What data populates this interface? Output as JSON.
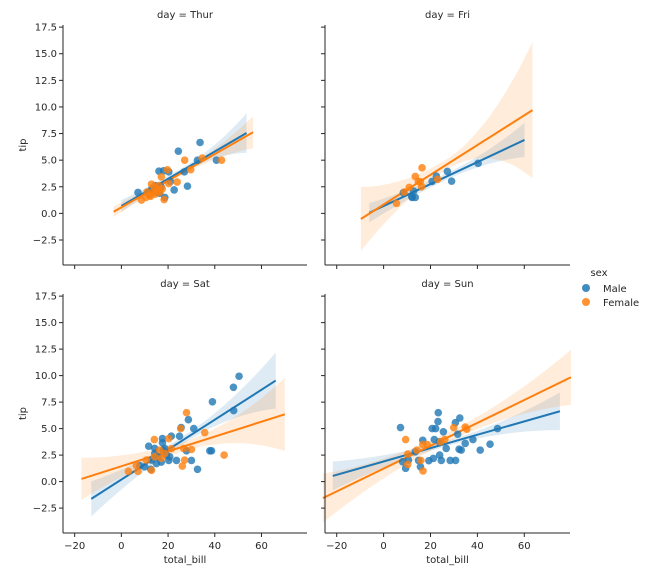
{
  "chart_data": {
    "type": "scatter",
    "kind": "faceted regression (scatter + linear fit with confidence band)",
    "xlabel": "total_bill",
    "ylabel": "tip",
    "xlim": [
      -25,
      79.5
    ],
    "ylim": [
      -4.85,
      17.7
    ],
    "xticks": [
      -20,
      0,
      20,
      40,
      60
    ],
    "xtick_labels": [
      "−20",
      "0",
      "20",
      "40",
      "60"
    ],
    "yticks": [
      -2.5,
      0,
      2.5,
      5,
      7.5,
      10,
      12.5,
      15,
      17.5
    ],
    "ytick_labels": [
      "−2.5",
      "0.0",
      "2.5",
      "5.0",
      "7.5",
      "10.0",
      "12.5",
      "15.0",
      "17.5"
    ],
    "grid": false,
    "legend": {
      "title": "sex",
      "placement": "right",
      "entries": [
        {
          "label": "Male",
          "color": "#1f77b4"
        },
        {
          "label": "Female",
          "color": "#ff7f0e"
        }
      ]
    },
    "panels": [
      {
        "title": "day = Thur",
        "series": [
          {
            "name": "Male",
            "color": "#1f77b4",
            "points": [
              [
                7.1,
                1.97
              ],
              [
                16.1,
                3.97
              ],
              [
                18.1,
                4.0
              ],
              [
                20.3,
                3.9
              ],
              [
                24.4,
                5.84
              ],
              [
                33.7,
                6.66
              ],
              [
                32.6,
                5.0
              ],
              [
                40.7,
                5.0
              ],
              [
                22.6,
                2.2
              ],
              [
                28.3,
                2.56
              ],
              [
                18.6,
                1.5
              ],
              [
                27.0,
                3.9
              ],
              [
                16.4,
                1.9
              ],
              [
                11.4,
                2.0
              ],
              [
                13.0,
                2.3
              ],
              [
                15.0,
                2.0
              ],
              [
                17.0,
                2.5
              ],
              [
                12.0,
                1.8
              ],
              [
                14.5,
                2.6
              ],
              [
                21.0,
                3.0
              ]
            ],
            "fit": {
              "x_range": [
                0,
                53.6
              ],
              "slope": 0.128,
              "intercept": 0.69,
              "ci_halfwidth": [
                0.55,
                0.25,
                1.85
              ]
            }
          },
          {
            "name": "Female",
            "color": "#ff7f0e",
            "points": [
              [
                8.6,
                1.25
              ],
              [
                12.9,
                2.75
              ],
              [
                17.1,
                3.44
              ],
              [
                19.7,
                4.1
              ],
              [
                27.1,
                5.0
              ],
              [
                34.6,
                5.2
              ],
              [
                42.9,
                5.0
              ],
              [
                29.7,
                4.1
              ],
              [
                23.9,
                2.94
              ],
              [
                18.3,
                1.3
              ],
              [
                20.3,
                2.8
              ],
              [
                10.5,
                1.5
              ],
              [
                12.0,
                1.7
              ],
              [
                13.5,
                2.0
              ],
              [
                14.5,
                1.8
              ],
              [
                15.5,
                2.2
              ],
              [
                16.5,
                2.0
              ],
              [
                11.0,
                2.0
              ],
              [
                14.0,
                2.5
              ],
              [
                17.5,
                2.3
              ],
              [
                16.0,
                2.6
              ],
              [
                12.5,
                1.6
              ]
            ],
            "fit": {
              "x_range": [
                -3.3,
                56.4
              ],
              "slope": 0.125,
              "intercept": 0.57,
              "ci_halfwidth": [
                0.5,
                0.25,
                1.5
              ]
            }
          }
        ]
      },
      {
        "title": "day = Fri",
        "series": [
          {
            "name": "Male",
            "color": "#1f77b4",
            "points": [
              [
                8.4,
                1.94
              ],
              [
                12.0,
                1.56
              ],
              [
                13.5,
                1.5
              ],
              [
                12.8,
                2.1
              ],
              [
                20.7,
                3.0
              ],
              [
                22.5,
                3.5
              ],
              [
                27.2,
                3.94
              ],
              [
                29.0,
                3.03
              ],
              [
                40.3,
                4.7
              ],
              [
                12.2,
                1.5
              ]
            ],
            "fit": {
              "x_range": [
                -6.1,
                60.1
              ],
              "slope": 0.1033,
              "intercept": 0.69,
              "ci_halfwidth": [
                0.9,
                0.3,
                1.6
              ]
            }
          },
          {
            "name": "Female",
            "color": "#ff7f0e",
            "points": [
              [
                5.5,
                0.94
              ],
              [
                8.8,
                2.0
              ],
              [
                10.9,
                2.44
              ],
              [
                13.5,
                3.47
              ],
              [
                16.4,
                4.28
              ],
              [
                15.7,
                2.97
              ],
              [
                16.2,
                2.5
              ],
              [
                23.0,
                3.2
              ],
              [
                14.8,
                3.0
              ]
            ],
            "fit": {
              "x_range": [
                -9.7,
                63.5
              ],
              "slope": 0.1397,
              "intercept": 0.83,
              "ci_halfwidth": [
                3.0,
                0.5,
                6.4
              ]
            }
          }
        ]
      },
      {
        "title": "day = Sat",
        "series": [
          {
            "name": "Male",
            "color": "#1f77b4",
            "points": [
              [
                50.4,
                9.94
              ],
              [
                48.0,
                8.9
              ],
              [
                39.0,
                7.53
              ],
              [
                48.1,
                6.7
              ],
              [
                28.7,
                5.84
              ],
              [
                25.6,
                5.1
              ],
              [
                31.0,
                5.0
              ],
              [
                24.9,
                4.28
              ],
              [
                21.4,
                4.28
              ],
              [
                17.6,
                4.06
              ],
              [
                17.6,
                3.66
              ],
              [
                11.7,
                3.34
              ],
              [
                37.9,
                2.9
              ],
              [
                38.6,
                2.9
              ],
              [
                30.0,
                2.0
              ],
              [
                32.6,
                1.16
              ],
              [
                27.9,
                2.9
              ],
              [
                23.6,
                2.0
              ],
              [
                20.3,
                2.0
              ],
              [
                12.6,
                1.16
              ],
              [
                7.9,
                1.5
              ],
              [
                10.0,
                1.4
              ],
              [
                14.3,
                2.66
              ],
              [
                15.7,
                2.34
              ],
              [
                17.9,
                2.97
              ],
              [
                19.3,
                2.5
              ],
              [
                12.9,
                2.03
              ],
              [
                15.0,
                1.7
              ],
              [
                17.1,
                1.84
              ],
              [
                18.6,
                3.13
              ],
              [
                20.7,
                2.34
              ],
              [
                14.3,
                3.13
              ]
            ],
            "fit": {
              "x_range": [
                -12.9,
                66.1
              ],
              "slope": 0.1413,
              "intercept": 0.19,
              "ci_halfwidth": [
                1.65,
                0.35,
                2.65
              ]
            }
          },
          {
            "name": "Female",
            "color": "#ff7f0e",
            "points": [
              [
                27.9,
                6.5
              ],
              [
                25.4,
                5.0
              ],
              [
                35.7,
                4.62
              ],
              [
                14.1,
                3.97
              ],
              [
                20.3,
                4.06
              ],
              [
                44.0,
                2.5
              ],
              [
                26.1,
                1.47
              ],
              [
                27.1,
                2.03
              ],
              [
                30.0,
                3.03
              ],
              [
                26.7,
                3.13
              ],
              [
                3.0,
                0.97
              ],
              [
                7.1,
                0.97
              ],
              [
                12.9,
                1.06
              ],
              [
                6.4,
                1.53
              ],
              [
                16.4,
                2.97
              ],
              [
                18.6,
                2.66
              ],
              [
                21.4,
                3.1
              ],
              [
                14.3,
                2.34
              ],
              [
                10.7,
                2.03
              ],
              [
                17.1,
                2.2
              ]
            ],
            "fit": {
              "x_range": [
                -17.1,
                70.0
              ],
              "slope": 0.07,
              "intercept": 1.45,
              "ci_halfwidth": [
                2.0,
                0.45,
                3.45
              ]
            }
          }
        ]
      },
      {
        "title": "day = Sun",
        "series": [
          {
            "name": "Male",
            "color": "#1f77b4",
            "points": [
              [
                7.2,
                5.1
              ],
              [
                23.3,
                6.5
              ],
              [
                23.2,
                5.66
              ],
              [
                32.5,
                6.0
              ],
              [
                30.6,
                5.56
              ],
              [
                20.7,
                5.0
              ],
              [
                22.2,
                5.0
              ],
              [
                25.5,
                4.7
              ],
              [
                48.6,
                5.0
              ],
              [
                38.1,
                3.97
              ],
              [
                34.8,
                3.6
              ],
              [
                45.4,
                3.53
              ],
              [
                41.2,
                2.97
              ],
              [
                32.2,
                3.06
              ],
              [
                33.1,
                2.97
              ],
              [
                28.4,
                2.0
              ],
              [
                30.7,
                2.0
              ],
              [
                24.6,
                2.0
              ],
              [
                23.9,
                2.5
              ],
              [
                21.2,
                2.19
              ],
              [
                9.4,
                1.25
              ],
              [
                15.7,
                1.4
              ],
              [
                16.7,
                3.9
              ],
              [
                21.6,
                3.97
              ],
              [
                26.7,
                3.13
              ],
              [
                23.8,
                3.75
              ],
              [
                13.5,
                2.81
              ],
              [
                14.9,
                2.0
              ],
              [
                19.3,
                1.97
              ],
              [
                31.6,
                4.47
              ],
              [
                8.1,
                1.87
              ],
              [
                10.6,
                2.03
              ]
            ],
            "fit": {
              "x_range": [
                -21.7,
                75.2
              ],
              "slope": 0.063,
              "intercept": 1.9,
              "ci_halfwidth": [
                1.36,
                0.25,
                1.78
              ]
            }
          },
          {
            "name": "Female",
            "color": "#ff7f0e",
            "points": [
              [
                9.4,
                3.97
              ],
              [
                10.3,
                2.6
              ],
              [
                10.3,
                1.62
              ],
              [
                16.8,
                1.0
              ],
              [
                15.9,
                2.0
              ],
              [
                16.7,
                3.5
              ],
              [
                18.6,
                3.5
              ],
              [
                26.1,
                3.97
              ],
              [
                29.9,
                5.1
              ],
              [
                34.8,
                5.15
              ],
              [
                35.5,
                4.94
              ],
              [
                14.2,
                2.97
              ],
              [
                24.3,
                3.75
              ]
            ],
            "fit": {
              "x_range": [
                -25.9,
                79.9
              ],
              "slope": 0.1078,
              "intercept": 1.23,
              "ci_halfwidth": [
                2.3,
                0.45,
                2.6
              ]
            }
          }
        ]
      }
    ]
  }
}
